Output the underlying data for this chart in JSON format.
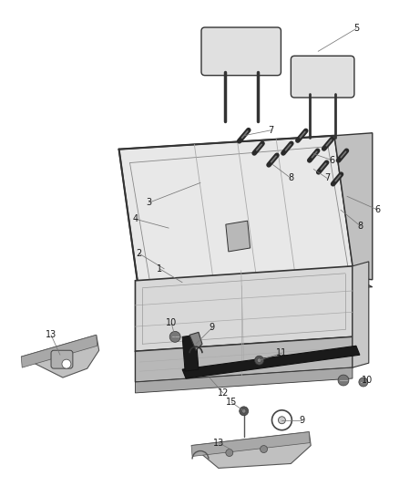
{
  "background_color": "#ffffff",
  "fig_width": 4.38,
  "fig_height": 5.33,
  "dpi": 100,
  "text_color": "#1a1a1a",
  "seat_fill": "#e8e8e8",
  "seat_dark": "#c0c0c0",
  "seat_edge": "#333333",
  "seat_side": "#d0d0d0",
  "rail_color": "#2a2a2a",
  "bracket_fill": "#b0b0b0",
  "bracket_edge": "#444444",
  "headrest_fill": "#e0e0e0",
  "headrest_edge": "#333333",
  "bolt_fill": "#444444",
  "bolt_edge": "#222222",
  "leader_color": "#777777",
  "label_fontsize": 7.0
}
